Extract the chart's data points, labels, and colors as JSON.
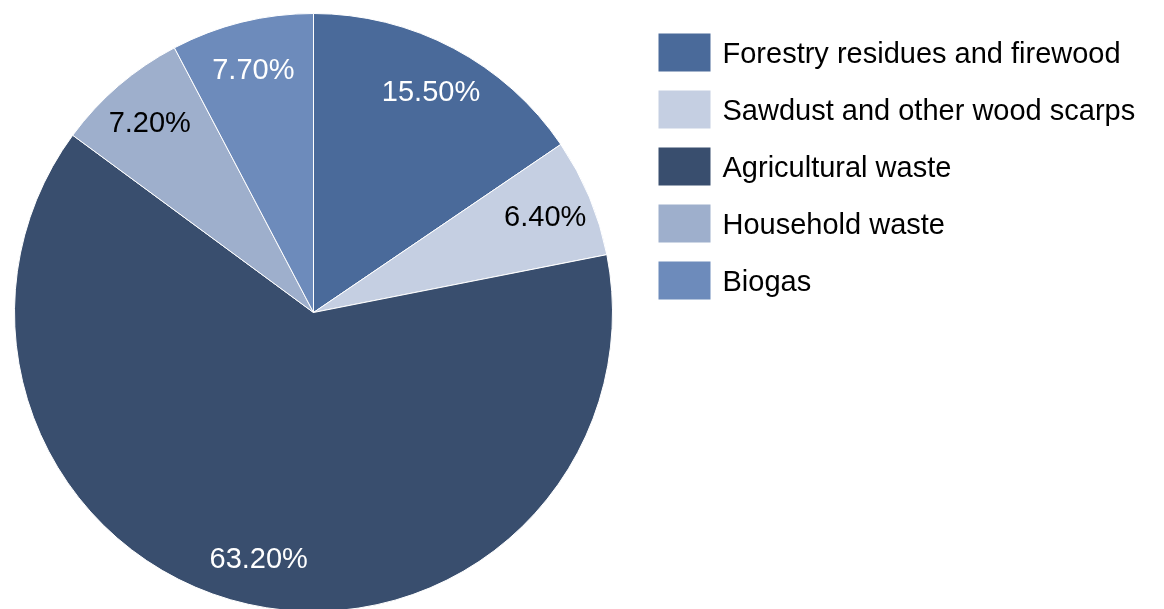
{
  "chart_data": {
    "type": "pie",
    "categories": [
      "Forestry residues and firewood",
      "Sawdust and other wood scarps",
      "Agricultural waste",
      "Household waste",
      "Biogas"
    ],
    "values": [
      15.5,
      6.4,
      63.2,
      7.2,
      7.7
    ],
    "value_labels": [
      "15.50%",
      "6.40%",
      "63.20%",
      "7.20%",
      "7.70%"
    ],
    "colors": [
      "#4a6a9a",
      "#c5cfe2",
      "#394e6e",
      "#9eafcc",
      "#6d8bbb"
    ],
    "legend": "right"
  }
}
